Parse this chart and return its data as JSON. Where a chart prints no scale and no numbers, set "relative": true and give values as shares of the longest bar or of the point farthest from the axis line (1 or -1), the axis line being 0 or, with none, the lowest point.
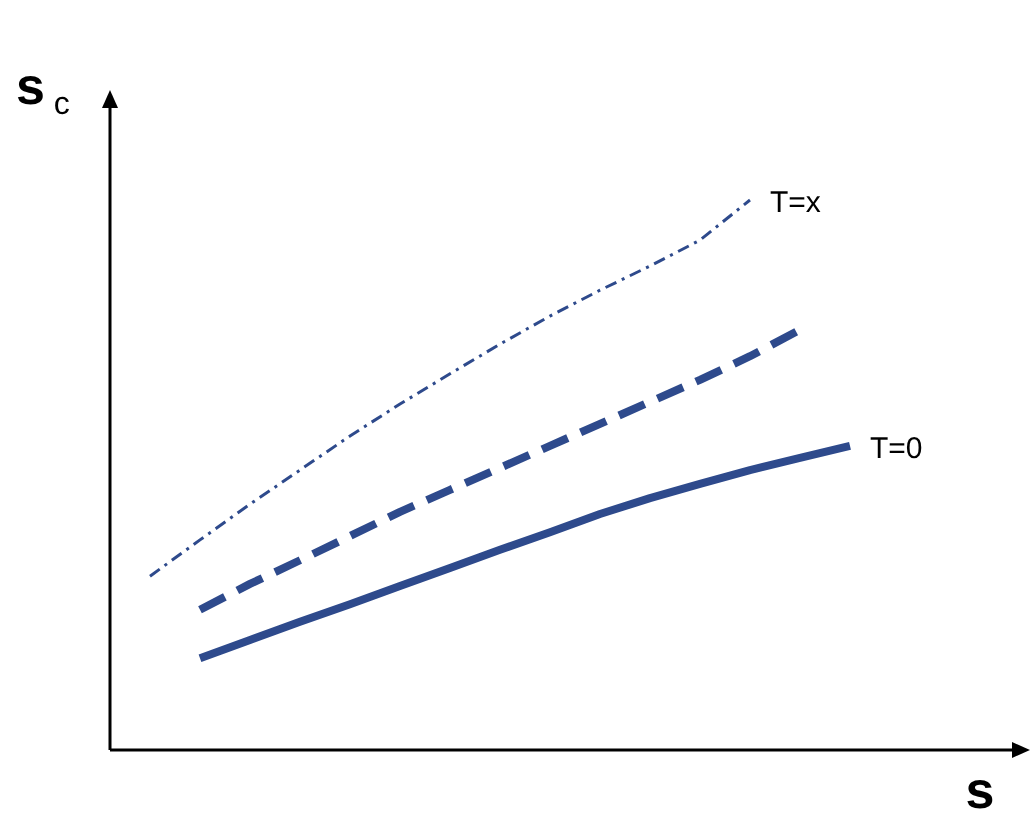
{
  "chart_data": {
    "type": "line",
    "relative": true,
    "xlabel": "s",
    "ylabel": "s$_{c}$",
    "legend": false,
    "categories": [
      null,
      null,
      null,
      null,
      null,
      null,
      null,
      null,
      null,
      null,
      null,
      null,
      null,
      null,
      null
    ],
    "series": [
      {
        "name": "T=x",
        "color": "#2e4a8c",
        "line_style": "dashdot",
        "values": [
          0.316,
          0.382,
          0.447,
          0.509,
          0.571,
          0.629,
          0.684,
          0.738,
          0.789,
          0.836,
          0.88,
          0.927,
          1,
          null,
          null
        ]
      },
      {
        "color": "#2e4a8c",
        "line_style": "dashed",
        "values": [
          null,
          0.255,
          0.302,
          0.345,
          0.389,
          0.433,
          0.473,
          0.513,
          0.553,
          0.593,
          0.633,
          0.673,
          0.716,
          0.764,
          null
        ]
      },
      {
        "name": "T=0",
        "color": "#2e4a8c",
        "line_style": "solid",
        "values": [
          null,
          0.167,
          0.2,
          0.233,
          0.265,
          0.298,
          0.331,
          0.364,
          0.396,
          0.429,
          0.458,
          0.484,
          0.509,
          0.531,
          0.553
        ]
      }
    ]
  }
}
